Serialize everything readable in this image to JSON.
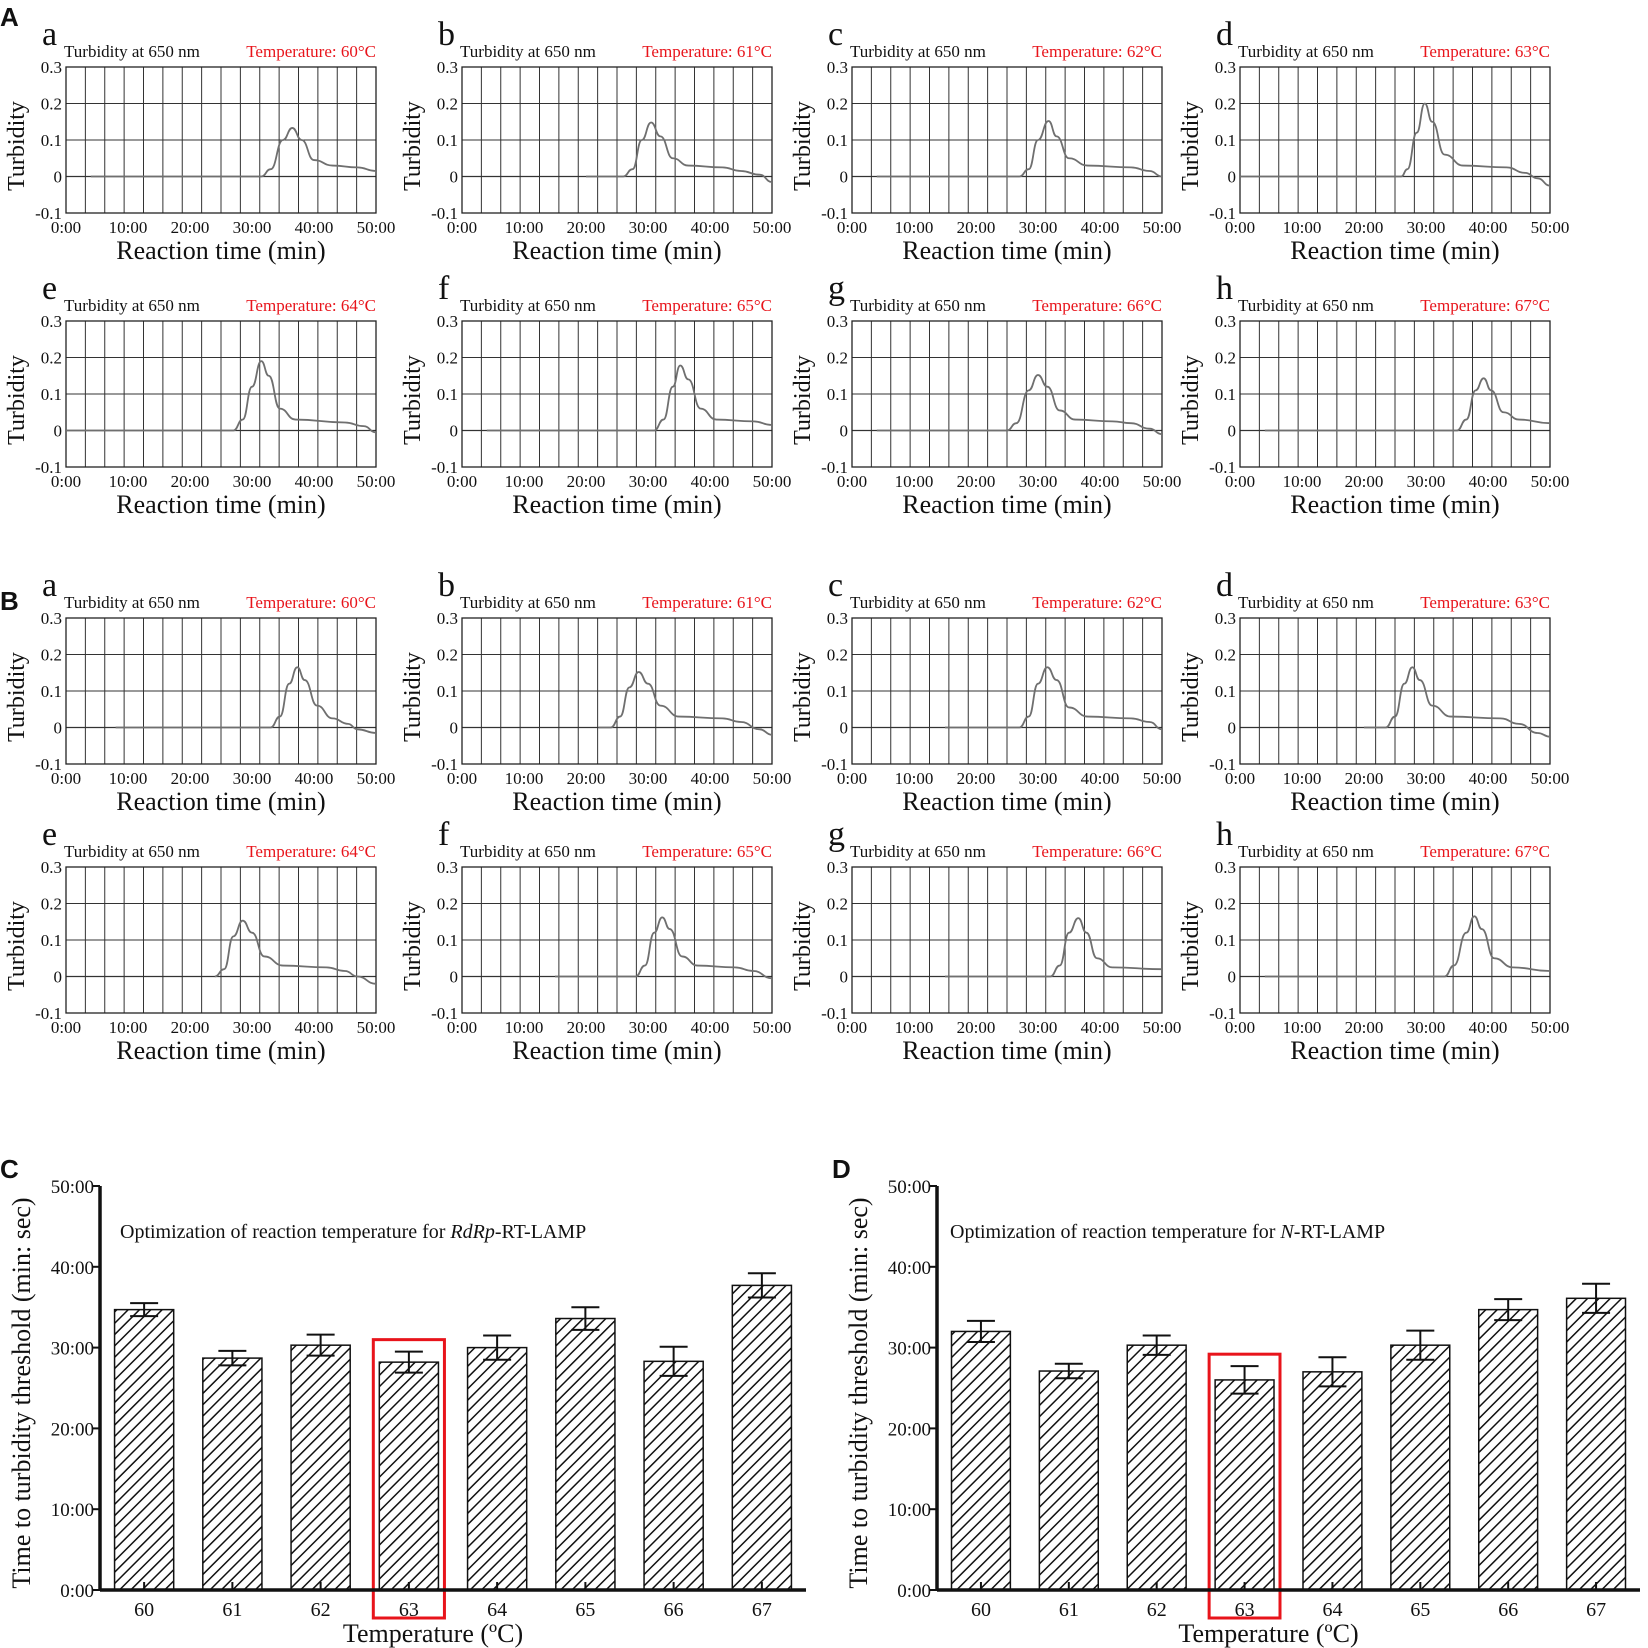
{
  "panels": {
    "A": "A",
    "B": "B",
    "C": "C",
    "D": "D"
  },
  "small_common": {
    "header_left": "Turbidity at 650 nm",
    "ylabel": "Turbidity",
    "xlabel": "Reaction time (min)",
    "yticks": [
      "0.3",
      "0.2",
      "0.1",
      "0",
      "-0.1"
    ],
    "xticks": [
      "0:00",
      "10:00",
      "20:00",
      "30:00",
      "40:00",
      "50:00"
    ]
  },
  "bar_common": {
    "ylabel": "Time to turbidity threshold (min: sec)",
    "xlabel": "Temperature (ºC)",
    "yticks": [
      "0:00",
      "10:00",
      "20:00",
      "30:00",
      "40:00",
      "50:00"
    ]
  },
  "colors": {
    "curve": "#6f6f6f",
    "temperature_text": "#e8141b",
    "highlight_box": "#e8141b",
    "grid": "#333333"
  },
  "chart_data": [
    {
      "type": "line",
      "panel": "A",
      "sub": "a",
      "temperature": "Temperature: 60°C",
      "x_range": [
        0,
        50
      ],
      "ylim": [
        -0.1,
        0.3
      ],
      "series": [
        {
          "name": "turbidity",
          "points": [
            [
              4,
              0
            ],
            [
              31.5,
              0
            ],
            [
              33,
              0.02
            ],
            [
              35,
              0.1
            ],
            [
              36.5,
              0.133
            ],
            [
              38,
              0.1
            ],
            [
              40,
              0.045
            ],
            [
              43,
              0.03
            ],
            [
              47,
              0.025
            ],
            [
              50,
              0.015
            ]
          ]
        }
      ]
    },
    {
      "type": "line",
      "panel": "A",
      "sub": "b",
      "temperature": "Temperature: 61°C",
      "x_range": [
        0,
        50
      ],
      "ylim": [
        -0.1,
        0.3
      ],
      "series": [
        {
          "name": "turbidity",
          "points": [
            [
              20,
              0
            ],
            [
              26,
              0
            ],
            [
              27.5,
              0.02
            ],
            [
              29,
              0.1
            ],
            [
              30.5,
              0.148
            ],
            [
              32,
              0.11
            ],
            [
              34,
              0.05
            ],
            [
              36.5,
              0.03
            ],
            [
              42,
              0.025
            ],
            [
              45,
              0.015
            ],
            [
              48,
              0.005
            ],
            [
              50,
              -0.015
            ]
          ]
        }
      ]
    },
    {
      "type": "line",
      "panel": "A",
      "sub": "c",
      "temperature": "Temperature: 62°C",
      "x_range": [
        0,
        50
      ],
      "ylim": [
        -0.1,
        0.3
      ],
      "series": [
        {
          "name": "turbidity",
          "points": [
            [
              4,
              0
            ],
            [
              27,
              0
            ],
            [
              28.5,
              0.02
            ],
            [
              30,
              0.1
            ],
            [
              31.7,
              0.152
            ],
            [
              33,
              0.11
            ],
            [
              35,
              0.05
            ],
            [
              38,
              0.03
            ],
            [
              45,
              0.025
            ],
            [
              48,
              0.015
            ],
            [
              50,
              0
            ]
          ]
        }
      ]
    },
    {
      "type": "line",
      "panel": "A",
      "sub": "d",
      "temperature": "Temperature: 63°C",
      "x_range": [
        0,
        50
      ],
      "ylim": [
        -0.1,
        0.3
      ],
      "series": [
        {
          "name": "turbidity",
          "points": [
            [
              0,
              0
            ],
            [
              26,
              0
            ],
            [
              27,
              0.02
            ],
            [
              28.5,
              0.12
            ],
            [
              29.8,
              0.2
            ],
            [
              31,
              0.15
            ],
            [
              33,
              0.06
            ],
            [
              36,
              0.03
            ],
            [
              43,
              0.025
            ],
            [
              46,
              0.01
            ],
            [
              48,
              -0.005
            ],
            [
              50,
              -0.025
            ]
          ]
        }
      ]
    },
    {
      "type": "line",
      "panel": "A",
      "sub": "e",
      "temperature": "Temperature: 64°C",
      "x_range": [
        0,
        50
      ],
      "ylim": [
        -0.1,
        0.3
      ],
      "series": [
        {
          "name": "turbidity",
          "points": [
            [
              0,
              0
            ],
            [
              27,
              0
            ],
            [
              28.5,
              0.03
            ],
            [
              30,
              0.12
            ],
            [
              31.5,
              0.19
            ],
            [
              32.7,
              0.15
            ],
            [
              34.5,
              0.06
            ],
            [
              37,
              0.03
            ],
            [
              45,
              0.022
            ],
            [
              48,
              0.012
            ],
            [
              50,
              -0.005
            ]
          ]
        }
      ]
    },
    {
      "type": "line",
      "panel": "A",
      "sub": "f",
      "temperature": "Temperature: 65°C",
      "x_range": [
        0,
        50
      ],
      "ylim": [
        -0.1,
        0.3
      ],
      "series": [
        {
          "name": "turbidity",
          "points": [
            [
              4,
              0
            ],
            [
              31,
              0
            ],
            [
              32.5,
              0.03
            ],
            [
              34,
              0.12
            ],
            [
              35.2,
              0.178
            ],
            [
              36.5,
              0.14
            ],
            [
              38.5,
              0.06
            ],
            [
              41,
              0.03
            ],
            [
              47,
              0.025
            ],
            [
              50,
              0.015
            ]
          ]
        }
      ]
    },
    {
      "type": "line",
      "panel": "A",
      "sub": "g",
      "temperature": "Temperature: 66°C",
      "x_range": [
        0,
        50
      ],
      "ylim": [
        -0.1,
        0.3
      ],
      "series": [
        {
          "name": "turbidity",
          "points": [
            [
              4,
              0
            ],
            [
              25,
              0
            ],
            [
              26.5,
              0.02
            ],
            [
              28.5,
              0.11
            ],
            [
              30,
              0.152
            ],
            [
              31.5,
              0.12
            ],
            [
              33.5,
              0.055
            ],
            [
              36,
              0.03
            ],
            [
              42,
              0.025
            ],
            [
              45,
              0.02
            ],
            [
              48,
              0.005
            ],
            [
              50,
              -0.01
            ]
          ]
        }
      ]
    },
    {
      "type": "line",
      "panel": "A",
      "sub": "h",
      "temperature": "Temperature: 67°C",
      "x_range": [
        0,
        50
      ],
      "ylim": [
        -0.1,
        0.3
      ],
      "series": [
        {
          "name": "turbidity",
          "points": [
            [
              4,
              0
            ],
            [
              35,
              0
            ],
            [
              36.5,
              0.03
            ],
            [
              38,
              0.11
            ],
            [
              39.3,
              0.143
            ],
            [
              40.5,
              0.11
            ],
            [
              42.5,
              0.05
            ],
            [
              45,
              0.03
            ],
            [
              50,
              0.02
            ]
          ]
        }
      ]
    },
    {
      "type": "line",
      "panel": "B",
      "sub": "a",
      "temperature": "Temperature: 60°C",
      "x_range": [
        0,
        50
      ],
      "ylim": [
        -0.1,
        0.3
      ],
      "series": [
        {
          "name": "turbidity",
          "points": [
            [
              8,
              0
            ],
            [
              33,
              0
            ],
            [
              34.5,
              0.03
            ],
            [
              36,
              0.12
            ],
            [
              37.3,
              0.165
            ],
            [
              38.5,
              0.13
            ],
            [
              40.5,
              0.06
            ],
            [
              43,
              0.025
            ],
            [
              45.5,
              0.01
            ],
            [
              47,
              -0.005
            ],
            [
              50,
              -0.015
            ]
          ]
        }
      ]
    },
    {
      "type": "line",
      "panel": "B",
      "sub": "b",
      "temperature": "Temperature: 61°C",
      "x_range": [
        0,
        50
      ],
      "ylim": [
        -0.1,
        0.3
      ],
      "series": [
        {
          "name": "turbidity",
          "points": [
            [
              22,
              0
            ],
            [
              24,
              0
            ],
            [
              25.5,
              0.03
            ],
            [
              27,
              0.11
            ],
            [
              28.5,
              0.152
            ],
            [
              30,
              0.12
            ],
            [
              32,
              0.06
            ],
            [
              35,
              0.03
            ],
            [
              42,
              0.025
            ],
            [
              45,
              0.015
            ],
            [
              48,
              -0.005
            ],
            [
              50,
              -0.02
            ]
          ]
        }
      ]
    },
    {
      "type": "line",
      "panel": "B",
      "sub": "c",
      "temperature": "Temperature: 62°C",
      "x_range": [
        0,
        50
      ],
      "ylim": [
        -0.1,
        0.3
      ],
      "series": [
        {
          "name": "turbidity",
          "points": [
            [
              15,
              0
            ],
            [
              27,
              0
            ],
            [
              28.5,
              0.03
            ],
            [
              30,
              0.12
            ],
            [
              31.5,
              0.165
            ],
            [
              33,
              0.13
            ],
            [
              35,
              0.055
            ],
            [
              38,
              0.03
            ],
            [
              45,
              0.025
            ],
            [
              48,
              0.015
            ],
            [
              50,
              -0.005
            ]
          ]
        }
      ]
    },
    {
      "type": "line",
      "panel": "B",
      "sub": "d",
      "temperature": "Temperature: 63°C",
      "x_range": [
        0,
        50
      ],
      "ylim": [
        -0.1,
        0.3
      ],
      "series": [
        {
          "name": "turbidity",
          "points": [
            [
              20,
              0
            ],
            [
              23.5,
              0
            ],
            [
              25,
              0.03
            ],
            [
              26.5,
              0.12
            ],
            [
              27.8,
              0.165
            ],
            [
              29,
              0.13
            ],
            [
              31,
              0.06
            ],
            [
              34,
              0.03
            ],
            [
              42,
              0.025
            ],
            [
              45,
              0.01
            ],
            [
              48,
              -0.015
            ],
            [
              50,
              -0.025
            ]
          ]
        }
      ]
    },
    {
      "type": "line",
      "panel": "B",
      "sub": "e",
      "temperature": "Temperature: 64°C",
      "x_range": [
        0,
        50
      ],
      "ylim": [
        -0.1,
        0.3
      ],
      "series": [
        {
          "name": "turbidity",
          "points": [
            [
              24,
              0
            ],
            [
              25.5,
              0.02
            ],
            [
              27,
              0.11
            ],
            [
              28.5,
              0.153
            ],
            [
              30,
              0.12
            ],
            [
              32,
              0.055
            ],
            [
              35,
              0.03
            ],
            [
              42,
              0.025
            ],
            [
              45,
              0.015
            ],
            [
              47,
              0
            ],
            [
              50,
              -0.02
            ]
          ]
        }
      ]
    },
    {
      "type": "line",
      "panel": "B",
      "sub": "f",
      "temperature": "Temperature: 65°C",
      "x_range": [
        0,
        50
      ],
      "ylim": [
        -0.1,
        0.3
      ],
      "series": [
        {
          "name": "turbidity",
          "points": [
            [
              15,
              0
            ],
            [
              28,
              0
            ],
            [
              29.5,
              0.03
            ],
            [
              31,
              0.12
            ],
            [
              32.3,
              0.162
            ],
            [
              33.5,
              0.13
            ],
            [
              35.5,
              0.055
            ],
            [
              38,
              0.03
            ],
            [
              44,
              0.025
            ],
            [
              47,
              0.015
            ],
            [
              50,
              -0.005
            ]
          ]
        }
      ]
    },
    {
      "type": "line",
      "panel": "B",
      "sub": "g",
      "temperature": "Temperature: 66°C",
      "x_range": [
        0,
        50
      ],
      "ylim": [
        -0.1,
        0.3
      ],
      "series": [
        {
          "name": "turbidity",
          "points": [
            [
              15,
              0
            ],
            [
              32,
              0
            ],
            [
              33.5,
              0.03
            ],
            [
              35,
              0.12
            ],
            [
              36.5,
              0.16
            ],
            [
              37.8,
              0.12
            ],
            [
              39.5,
              0.05
            ],
            [
              42,
              0.025
            ],
            [
              50,
              0.02
            ]
          ]
        }
      ]
    },
    {
      "type": "line",
      "panel": "B",
      "sub": "h",
      "temperature": "Temperature: 67°C",
      "x_range": [
        0,
        50
      ],
      "ylim": [
        -0.1,
        0.3
      ],
      "series": [
        {
          "name": "turbidity",
          "points": [
            [
              4,
              0
            ],
            [
              33,
              0
            ],
            [
              34.5,
              0.03
            ],
            [
              36.5,
              0.12
            ],
            [
              37.8,
              0.165
            ],
            [
              39,
              0.13
            ],
            [
              41,
              0.05
            ],
            [
              44,
              0.025
            ],
            [
              50,
              0.015
            ]
          ]
        }
      ]
    },
    {
      "type": "bar",
      "panel": "C",
      "title_prefix": "Optimization of reaction temperature for ",
      "title_italic": "RdRp",
      "title_suffix": "-RT-LAMP",
      "categories": [
        "60",
        "61",
        "62",
        "63",
        "64",
        "65",
        "66",
        "67"
      ],
      "values": [
        34.7,
        28.7,
        30.3,
        28.2,
        30.0,
        33.6,
        28.3,
        37.7
      ],
      "errors": [
        0.8,
        0.9,
        1.3,
        1.3,
        1.5,
        1.4,
        1.8,
        1.5
      ],
      "ylim": [
        0,
        50
      ],
      "highlight": "63"
    },
    {
      "type": "bar",
      "panel": "D",
      "title_prefix": "Optimization of reaction temperature for ",
      "title_italic": "N",
      "title_suffix": "-RT-LAMP",
      "categories": [
        "60",
        "61",
        "62",
        "63",
        "64",
        "65",
        "66",
        "67"
      ],
      "values": [
        32.0,
        27.1,
        30.3,
        26.0,
        27.0,
        30.3,
        34.7,
        36.1
      ],
      "errors": [
        1.3,
        0.9,
        1.2,
        1.7,
        1.8,
        1.8,
        1.3,
        1.8
      ],
      "ylim": [
        0,
        50
      ],
      "highlight": "63"
    }
  ]
}
